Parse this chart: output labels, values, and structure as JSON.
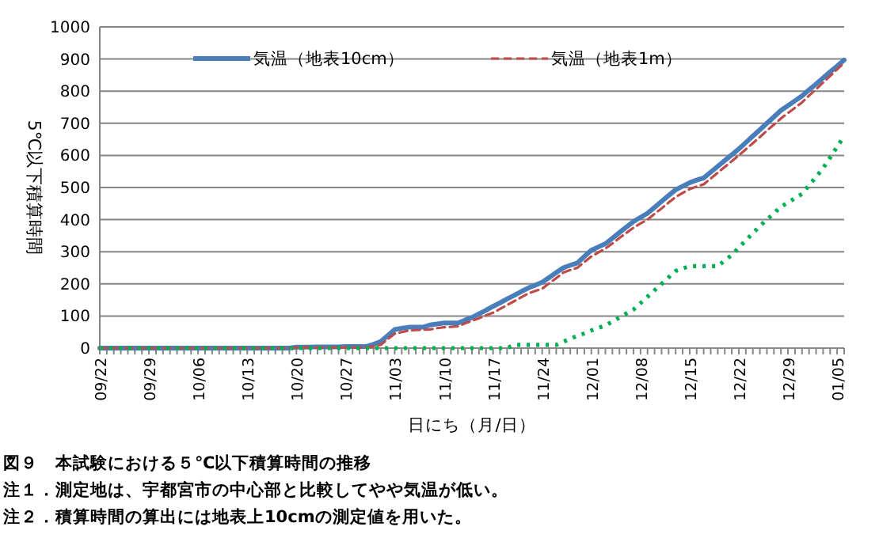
{
  "chart_data": {
    "type": "line",
    "xlabel": "日にち（月/日）",
    "ylabel": "5℃以下積算時間",
    "categories": [
      "09/22",
      null,
      null,
      null,
      null,
      null,
      null,
      "09/29",
      null,
      null,
      null,
      null,
      null,
      null,
      "10/06",
      null,
      null,
      null,
      null,
      null,
      null,
      "10/13",
      null,
      null,
      null,
      null,
      null,
      null,
      "10/20",
      null,
      null,
      null,
      null,
      null,
      null,
      "10/27",
      null,
      null,
      null,
      null,
      null,
      null,
      "11/03",
      null,
      null,
      null,
      null,
      null,
      null,
      "11/10",
      null,
      null,
      null,
      null,
      null,
      null,
      "11/17",
      null,
      null,
      null,
      null,
      null,
      null,
      "11/24",
      null,
      null,
      null,
      null,
      null,
      null,
      "12/01",
      null,
      null,
      null,
      null,
      null,
      null,
      "12/08",
      null,
      null,
      null,
      null,
      null,
      null,
      "12/15",
      null,
      null,
      null,
      null,
      null,
      null,
      "12/22",
      null,
      null,
      null,
      null,
      null,
      null,
      "12/29",
      null,
      null,
      null,
      null,
      null,
      null,
      "01/05",
      null
    ],
    "series": [
      {
        "name": "気温（地表10cm）",
        "color": "#4a7ebb",
        "line_style": "solid",
        "values": [
          0,
          0,
          0,
          0,
          0,
          0,
          0,
          0,
          0,
          0,
          0,
          0,
          0,
          0,
          0,
          0,
          0,
          0,
          0,
          0,
          0,
          0,
          0,
          0,
          0,
          0,
          0,
          0,
          3,
          3,
          3,
          4,
          4,
          4,
          4,
          5,
          5,
          5,
          5,
          12,
          20,
          39,
          58,
          62,
          65,
          65,
          65,
          72,
          75,
          78,
          78,
          78,
          87,
          95,
          107,
          118,
          130,
          141,
          153,
          164,
          176,
          187,
          196,
          205,
          220,
          235,
          250,
          258,
          265,
          285,
          305,
          315,
          325,
          342,
          360,
          377,
          394,
          407,
          420,
          438,
          457,
          475,
          493,
          504,
          515,
          523,
          530,
          548,
          566,
          584,
          602,
          620,
          640,
          660,
          680,
          700,
          720,
          740,
          755,
          770,
          785,
          804,
          822,
          841,
          860,
          878,
          897
        ]
      },
      {
        "name": "気温（地表1m）",
        "color": "#be4b48",
        "line_style": "dashed",
        "values": [
          0,
          0,
          0,
          0,
          0,
          0,
          0,
          0,
          0,
          0,
          0,
          0,
          0,
          0,
          0,
          0,
          0,
          0,
          0,
          0,
          0,
          0,
          0,
          0,
          0,
          0,
          0,
          0,
          2,
          2,
          2,
          2,
          2,
          2,
          2,
          2,
          2,
          2,
          3,
          6,
          10,
          28,
          45,
          50,
          55,
          56,
          57,
          58,
          62,
          65,
          66,
          68,
          77,
          85,
          93,
          102,
          110,
          122,
          134,
          146,
          158,
          170,
          178,
          185,
          202,
          218,
          235,
          243,
          250,
          268,
          285,
          298,
          310,
          326,
          343,
          359,
          375,
          388,
          400,
          418,
          435,
          453,
          470,
          483,
          495,
          503,
          510,
          528,
          546,
          564,
          582,
          600,
          619,
          638,
          657,
          677,
          696,
          715,
          732,
          748,
          765,
          786,
          806,
          827,
          847,
          868,
          888
        ]
      },
      {
        "color": "#00b050",
        "line_style": "dotted",
        "values": [
          0,
          0,
          0,
          0,
          0,
          0,
          0,
          0,
          0,
          0,
          0,
          0,
          0,
          0,
          0,
          0,
          0,
          0,
          0,
          0,
          0,
          0,
          0,
          0,
          0,
          0,
          0,
          0,
          0,
          0,
          0,
          0,
          0,
          0,
          0,
          0,
          0,
          0,
          0,
          0,
          0,
          0,
          0,
          0,
          0,
          0,
          0,
          0,
          0,
          0,
          0,
          0,
          0,
          0,
          0,
          0,
          0,
          0,
          0,
          10,
          10,
          10,
          10,
          10,
          10,
          10,
          20,
          29,
          38,
          46,
          55,
          63,
          70,
          83,
          95,
          108,
          120,
          140,
          160,
          180,
          200,
          220,
          240,
          248,
          255,
          255,
          255,
          255,
          255,
          273,
          290,
          313,
          335,
          358,
          380,
          400,
          420,
          440,
          453,
          467,
          480,
          507,
          533,
          560,
          593,
          627,
          660
        ]
      }
    ],
    "ylim": [
      0,
      1000
    ],
    "yticks": [
      0,
      100,
      200,
      300,
      400,
      500,
      600,
      700,
      800,
      900,
      1000
    ],
    "grid": "y",
    "legend": "top",
    "marker": "none",
    "annotations": [
      "図９　本試験における５℃以下積算時間の推移",
      "注１．測定地は、宇都宮市の中心部と比較してやや気温が低い。",
      "注２．積算時間の算出には地表上10cmの測定値を用いた。"
    ]
  }
}
